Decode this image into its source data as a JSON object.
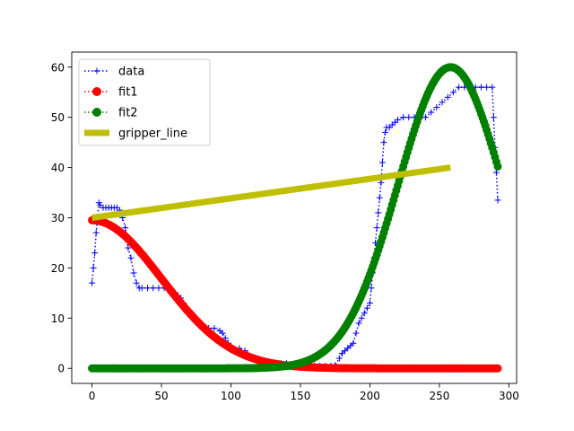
{
  "chart_data": {
    "type": "line",
    "title": "",
    "xlabel": "",
    "ylabel": "",
    "xlim": [
      -14.55,
      305.55
    ],
    "ylim": [
      -3.0,
      63.0
    ],
    "x_ticks": [
      0,
      50,
      100,
      150,
      200,
      250,
      300
    ],
    "y_ticks": [
      0,
      10,
      20,
      30,
      40,
      50,
      60
    ],
    "x_tick_labels": [
      "0",
      "50",
      "100",
      "150",
      "200",
      "250",
      "300"
    ],
    "y_tick_labels": [
      "0",
      "10",
      "20",
      "30",
      "40",
      "50",
      "60"
    ],
    "grid": false,
    "legend_position": "top-left",
    "series": [
      {
        "name": "data",
        "color": "#0000ff",
        "line_style": "dotted",
        "marker": "plus",
        "points": [
          [
            0,
            17
          ],
          [
            1,
            20
          ],
          [
            2,
            23
          ],
          [
            3,
            27
          ],
          [
            4,
            30
          ],
          [
            5,
            33
          ],
          [
            6,
            32.5
          ],
          [
            8,
            32
          ],
          [
            10,
            32
          ],
          [
            12,
            32
          ],
          [
            14,
            32
          ],
          [
            16,
            32
          ],
          [
            18,
            32
          ],
          [
            20,
            31.5
          ],
          [
            22,
            30
          ],
          [
            24,
            28
          ],
          [
            26,
            24
          ],
          [
            28,
            22
          ],
          [
            30,
            19
          ],
          [
            32,
            17
          ],
          [
            34,
            16
          ],
          [
            36,
            16
          ],
          [
            40,
            16
          ],
          [
            44,
            16
          ],
          [
            48,
            16
          ],
          [
            52,
            16
          ],
          [
            56,
            16
          ],
          [
            58,
            15.5
          ],
          [
            60,
            15
          ],
          [
            62,
            14.5
          ],
          [
            64,
            14
          ],
          [
            66,
            13
          ],
          [
            68,
            12
          ],
          [
            70,
            11.5
          ],
          [
            72,
            11
          ],
          [
            74,
            10
          ],
          [
            76,
            9
          ],
          [
            78,
            8.5
          ],
          [
            80,
            8
          ],
          [
            84,
            8
          ],
          [
            88,
            8
          ],
          [
            92,
            7.5
          ],
          [
            94,
            7
          ],
          [
            96,
            6
          ],
          [
            98,
            5
          ],
          [
            100,
            4.5
          ],
          [
            102,
            4
          ],
          [
            106,
            4
          ],
          [
            110,
            3.5
          ],
          [
            112,
            3
          ],
          [
            116,
            2
          ],
          [
            120,
            1.5
          ],
          [
            124,
            1
          ],
          [
            128,
            1
          ],
          [
            132,
            1
          ],
          [
            136,
            1
          ],
          [
            140,
            1
          ],
          [
            144,
            0.5
          ],
          [
            148,
            0.5
          ],
          [
            152,
            0.5
          ],
          [
            156,
            0.5
          ],
          [
            160,
            0.5
          ],
          [
            164,
            0.5
          ],
          [
            168,
            0.5
          ],
          [
            172,
            0.5
          ],
          [
            175,
            0.6
          ],
          [
            178,
            2
          ],
          [
            180,
            3
          ],
          [
            182,
            3.5
          ],
          [
            184,
            4
          ],
          [
            186,
            4.5
          ],
          [
            188,
            5
          ],
          [
            190,
            7
          ],
          [
            192,
            9
          ],
          [
            194,
            10
          ],
          [
            196,
            11
          ],
          [
            198,
            12
          ],
          [
            200,
            13
          ],
          [
            201,
            16
          ],
          [
            202,
            19
          ],
          [
            203,
            22
          ],
          [
            204,
            25
          ],
          [
            205,
            28
          ],
          [
            206,
            31
          ],
          [
            207,
            34
          ],
          [
            208,
            37
          ],
          [
            209,
            41
          ],
          [
            210,
            45
          ],
          [
            211,
            47
          ],
          [
            212,
            48
          ],
          [
            214,
            48
          ],
          [
            216,
            48.5
          ],
          [
            218,
            49
          ],
          [
            220,
            49.5
          ],
          [
            224,
            50
          ],
          [
            228,
            50
          ],
          [
            232,
            50
          ],
          [
            236,
            50
          ],
          [
            240,
            50
          ],
          [
            244,
            51
          ],
          [
            248,
            52
          ],
          [
            252,
            53
          ],
          [
            256,
            54
          ],
          [
            260,
            55
          ],
          [
            264,
            56
          ],
          [
            268,
            56
          ],
          [
            272,
            56
          ],
          [
            276,
            56
          ],
          [
            280,
            56
          ],
          [
            284,
            56
          ],
          [
            288,
            56
          ],
          [
            289,
            50
          ],
          [
            290,
            44
          ],
          [
            291,
            39
          ],
          [
            292,
            33.5
          ]
        ]
      },
      {
        "name": "fit1",
        "color": "#ff0000",
        "line_style": "dotted",
        "marker": "circle",
        "curve": "gaussian",
        "params": {
          "amplitude": 29.5,
          "center": 0,
          "sigma": 50
        },
        "x_range": [
          0,
          292
        ],
        "step": 1
      },
      {
        "name": "fit2",
        "color": "#008000",
        "line_style": "dotted",
        "marker": "circle",
        "curve": "gaussian",
        "params": {
          "amplitude": 60,
          "center": 258,
          "sigma": 38
        },
        "x_range": [
          0,
          292
        ],
        "step": 1
      },
      {
        "name": "gripper_line",
        "color": "#bfbf00",
        "line_style": "solid",
        "marker": "none",
        "points": [
          [
            0,
            30
          ],
          [
            258,
            40
          ]
        ]
      }
    ]
  }
}
